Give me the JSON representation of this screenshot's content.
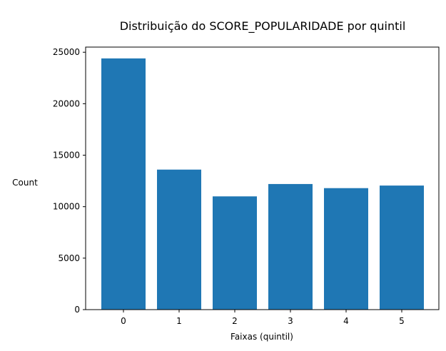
{
  "chart_data": {
    "type": "bar",
    "title": "Distribuição do SCORE_POPULARIDADE por quintil",
    "xlabel": "Faixas (quintil)",
    "ylabel": "Count",
    "categories": [
      "0",
      "1",
      "2",
      "3",
      "4",
      "5"
    ],
    "values": [
      24400,
      13600,
      11000,
      12200,
      11800,
      12050
    ],
    "ylim": [
      0,
      25500
    ],
    "yticks": [
      "0",
      "5000",
      "10000",
      "15000",
      "20000",
      "25000"
    ],
    "grid": false,
    "bar_color": "#1f77b4"
  }
}
